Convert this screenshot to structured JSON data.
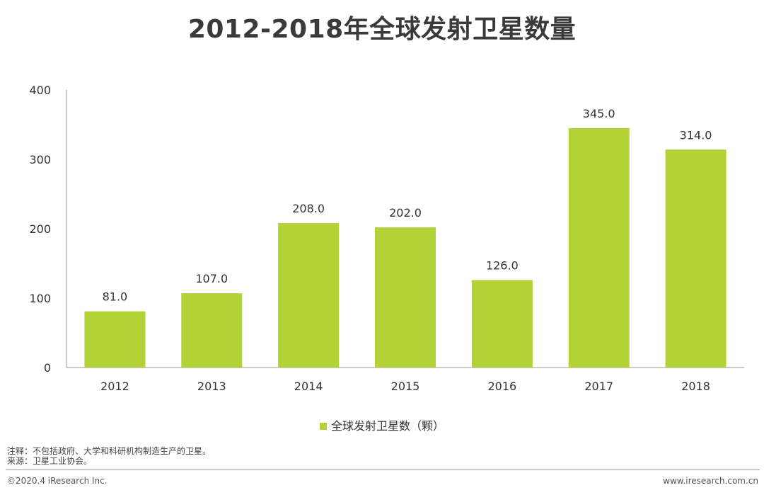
{
  "title": "2012-2018年全球发射卫星数量",
  "colors": {
    "bar": "#b2d235",
    "axis": "#999999",
    "text": "#333333"
  },
  "chart_data": {
    "type": "bar",
    "title": "2012-2018年全球发射卫星数量",
    "categories": [
      "2012",
      "2013",
      "2014",
      "2015",
      "2016",
      "2017",
      "2018"
    ],
    "series": [
      {
        "name": "全球发射卫星数（颗）",
        "values": [
          81.0,
          107.0,
          208.0,
          202.0,
          126.0,
          345.0,
          314.0
        ],
        "labels": [
          "81.0",
          "107.0",
          "208.0",
          "202.0",
          "126.0",
          "345.0",
          "314.0"
        ]
      }
    ],
    "yticks": [
      0,
      100,
      200,
      300,
      400
    ],
    "ylim": [
      0,
      400
    ],
    "xlabel": "",
    "ylabel": "",
    "grid": false,
    "legend": "bottom"
  },
  "notes": {
    "note": "注释：不包括政府、大学和科研机构制造生产的卫星。",
    "source": "来源：卫星工业协会。"
  },
  "footer": {
    "copyright": "©2020.4 iResearch Inc.",
    "website": "www.iresearch.com.cn"
  }
}
